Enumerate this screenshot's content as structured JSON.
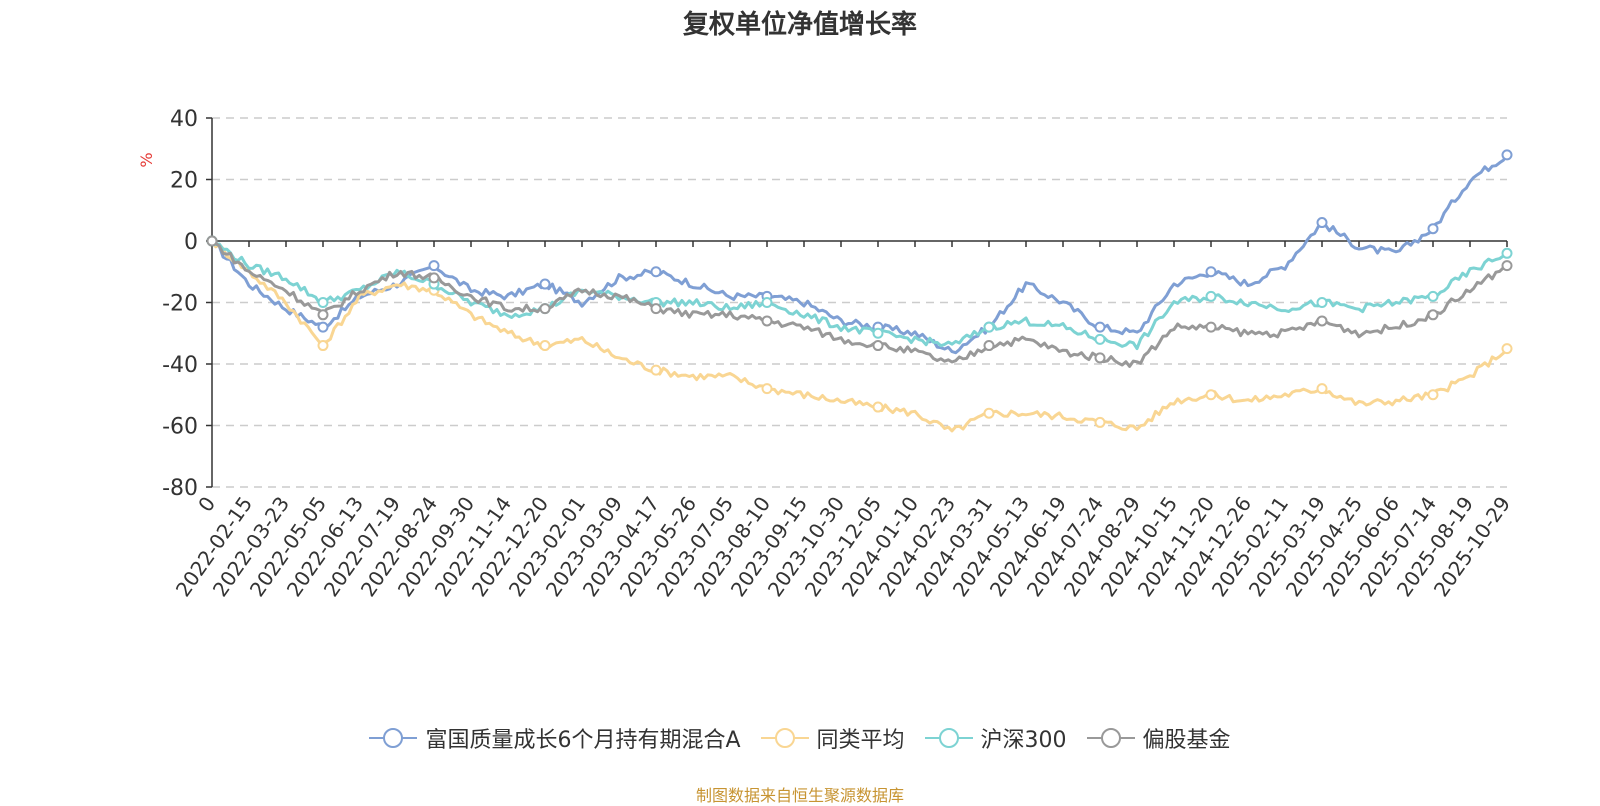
{
  "chart_data": {
    "type": "line",
    "title": "复权单位净值增长率",
    "ylabel": "%",
    "ylim": [
      -80,
      40
    ],
    "yticks": [
      40,
      20,
      0,
      -20,
      -40,
      -60,
      -80
    ],
    "grid": true,
    "legend_position": "bottom",
    "x_ticks": [
      "0",
      "2022-02-15",
      "2022-03-23",
      "2022-05-05",
      "2022-06-13",
      "2022-07-19",
      "2022-08-24",
      "2022-09-30",
      "2022-11-14",
      "2022-12-20",
      "2023-02-01",
      "2023-03-09",
      "2023-04-17",
      "2023-05-26",
      "2023-07-05",
      "2023-08-10",
      "2023-09-15",
      "2023-10-30",
      "2023-12-05",
      "2024-01-10",
      "2024-02-23",
      "2024-03-31",
      "2024-05-13",
      "2024-06-19",
      "2024-07-24",
      "2024-08-29",
      "2024-10-15",
      "2024-11-20",
      "2024-12-26",
      "2025-02-11",
      "2025-03-19",
      "2025-04-25",
      "2025-06-06",
      "2025-07-14",
      "2025-08-19",
      "2025-10-29"
    ],
    "x_labels_on_axis": [
      "0",
      "2022-02-15",
      "2022-03-23",
      "2022-05-05",
      "2022-06-13",
      "2022-07-19",
      "2022-08-24",
      "2022-09-30",
      "2022-11-14",
      "2022-12-20",
      "2023-02-01",
      "2023-03-09",
      "2023-04-17",
      "2023-05-26",
      "2023-07-05",
      "2023-08-10",
      "2023-09-15",
      "2023-10-30",
      "2023-12-05",
      "2024-01-10",
      "2024-02-23",
      "2024-03-31",
      "2024-05-13",
      "2024-06-19",
      "2024-07-24",
      "2024-08-29",
      "2024-10-15",
      "2024-11-20",
      "2024-12-26",
      "2025-02-11",
      "2025-03-19",
      "2025-04-25",
      "2025-06-06",
      "2025-07-14",
      "2025-08-19",
      "2025-10-29"
    ],
    "series": [
      {
        "name": "富国质量成长6个月持有期混合A",
        "color": "#7f9fd4",
        "values": [
          0,
          -14,
          -22,
          -28,
          -18,
          -14,
          -8,
          -16,
          -18,
          -14,
          -20,
          -12,
          -10,
          -14,
          -18,
          -18,
          -20,
          -26,
          -28,
          -30,
          -36,
          -28,
          -14,
          -20,
          -28,
          -30,
          -14,
          -10,
          -14,
          -8,
          6,
          -2,
          -4,
          4,
          20,
          28
        ]
      },
      {
        "name": "同类平均",
        "color": "#f9d693",
        "values": [
          0,
          -10,
          -20,
          -34,
          -18,
          -14,
          -16,
          -24,
          -30,
          -34,
          -32,
          -38,
          -42,
          -44,
          -44,
          -48,
          -50,
          -52,
          -54,
          -56,
          -62,
          -56,
          -56,
          -57,
          -59,
          -61,
          -52,
          -50,
          -52,
          -50,
          -48,
          -53,
          -52,
          -50,
          -44,
          -35
        ]
      },
      {
        "name": "沪深300",
        "color": "#7dd3d3",
        "values": [
          0,
          -8,
          -12,
          -20,
          -16,
          -10,
          -14,
          -20,
          -24,
          -22,
          -16,
          -18,
          -20,
          -20,
          -22,
          -20,
          -24,
          -28,
          -30,
          -32,
          -34,
          -28,
          -26,
          -28,
          -32,
          -34,
          -20,
          -18,
          -20,
          -22,
          -20,
          -22,
          -20,
          -18,
          -10,
          -4
        ]
      },
      {
        "name": "偏股基金",
        "color": "#999999",
        "values": [
          0,
          -10,
          -16,
          -24,
          -16,
          -10,
          -12,
          -18,
          -22,
          -22,
          -16,
          -18,
          -22,
          -24,
          -24,
          -26,
          -28,
          -32,
          -34,
          -36,
          -40,
          -34,
          -32,
          -36,
          -38,
          -40,
          -28,
          -28,
          -30,
          -30,
          -26,
          -30,
          -28,
          -24,
          -16,
          -8
        ]
      }
    ]
  },
  "source_text": "制图数据来自恒生聚源数据库"
}
